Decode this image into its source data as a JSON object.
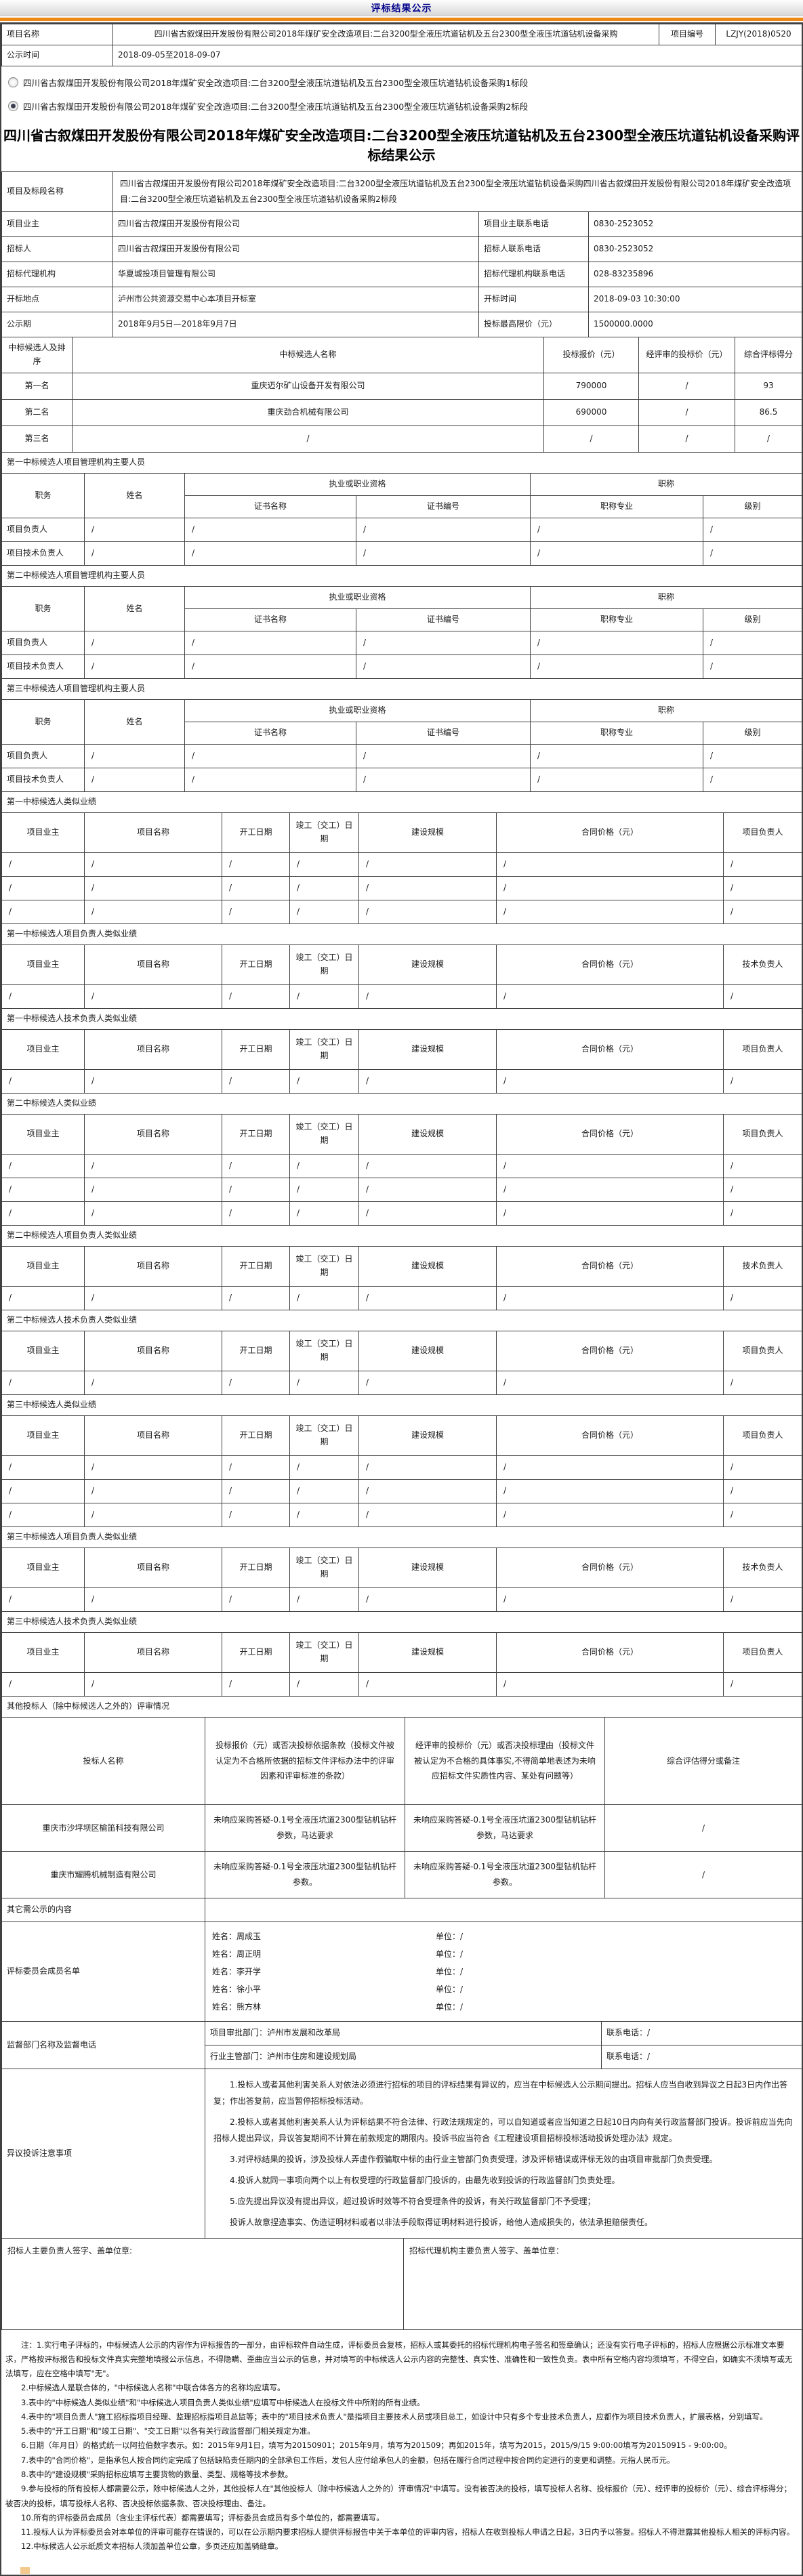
{
  "page_title": "评标结果公示",
  "top_table": {
    "project_name_label": "项目名称",
    "project_name": "四川省古叙煤田开发股份有限公司2018年煤矿安全改造项目:二台3200型全液压坑道钻机及五台2300型全液压坑道钻机设备采购",
    "project_no_label": "项目编号",
    "project_no": "LZJY(2018)0520",
    "publicity_label": "公示时间",
    "publicity_value": "2018-09-05至2018-09-07"
  },
  "lot_options": [
    {
      "label": "四川省古叙煤田开发股份有限公司2018年煤矿安全改造项目:二台3200型全液压坑道钻机及五台2300型全液压坑道钻机设备采购1标段",
      "selected": false
    },
    {
      "label": "四川省古叙煤田开发股份有限公司2018年煤矿安全改造项目:二台3200型全液压坑道钻机及五台2300型全液压坑道钻机设备采购2标段",
      "selected": true
    }
  ],
  "result_title": "四川省古叙煤田开发股份有限公司2018年煤矿安全改造项目:二台3200型全液压坑道钻机及五台2300型全液压坑道钻机设备采购评标结果公示",
  "project_info": {
    "lot_label": "项目及标段名称",
    "lot_value": "四川省古叙煤田开发股份有限公司2018年煤矿安全改造项目:二台3200型全液压坑道钻机及五台2300型全液压坑道钻机设备采购四川省古叙煤田开发股份有限公司2018年煤矿安全改造项目:二台3200型全液压坑道钻机及五台2300型全液压坑道钻机设备采购2标段",
    "rows4": [
      {
        "l1": "项目业主",
        "v1": "四川省古叙煤田开发股份有限公司",
        "l2": "项目业主联系电话",
        "v2": "0830-2523052"
      },
      {
        "l1": "招标人",
        "v1": "四川省古叙煤田开发股份有限公司",
        "l2": "招标人联系电话",
        "v2": "0830-2523052"
      },
      {
        "l1": "招标代理机构",
        "v1": "华夏城投项目管理有限公司",
        "l2": "招标代理机构联系电话",
        "v2": "028-83235896"
      },
      {
        "l1": "开标地点",
        "v1": "泸州市公共资源交易中心本项目开标室",
        "l2": "开标时间",
        "v2": "2018-09-03 10:30:00"
      },
      {
        "l1": "公示期",
        "v1": "2018年9月5日—2018年9月7日",
        "l2": "投标最高限价（元）",
        "v2": "1500000.0000"
      }
    ]
  },
  "ranking": {
    "headers": [
      "中标候选人及排序",
      "中标候选人名称",
      "投标报价（元）",
      "经评审的投标价（元）",
      "综合评标得分"
    ],
    "rows": [
      {
        "rank": "第一名",
        "name": "重庆迈尔矿山设备开发有限公司",
        "price": "790000",
        "reviewed": "/",
        "score": "93"
      },
      {
        "rank": "第二名",
        "name": "重庆劲合机械有限公司",
        "price": "690000",
        "reviewed": "/",
        "score": "86.5"
      },
      {
        "rank": "第三名",
        "name": "/",
        "price": "/",
        "reviewed": "/",
        "score": "/"
      }
    ]
  },
  "personnel_headers": {
    "col_role": "职务",
    "col_name": "姓名",
    "group_qual": "执业或职业资格",
    "group_title": "职称",
    "col_cert_name": "证书名称",
    "col_cert_no": "证书编号",
    "col_title_major": "职称专业",
    "col_level": "级别"
  },
  "personnel_sections": [
    {
      "title": "第一中标候选人项目管理机构主要人员",
      "rows": [
        {
          "role": "项目负责人",
          "cells": [
            "/",
            "/",
            "/",
            "/",
            "/"
          ]
        },
        {
          "role": "项目技术负责人",
          "cells": [
            "/",
            "/",
            "/",
            "/",
            "/"
          ]
        }
      ]
    },
    {
      "title": "第二中标候选人项目管理机构主要人员",
      "rows": [
        {
          "role": "项目负责人",
          "cells": [
            "/",
            "/",
            "/",
            "/",
            "/"
          ]
        },
        {
          "role": "项目技术负责人",
          "cells": [
            "/",
            "/",
            "/",
            "/",
            "/"
          ]
        }
      ]
    },
    {
      "title": "第三中标候选人项目管理机构主要人员",
      "rows": [
        {
          "role": "项目负责人",
          "cells": [
            "/",
            "/",
            "/",
            "/",
            "/"
          ]
        },
        {
          "role": "项目技术负责人",
          "cells": [
            "/",
            "/",
            "/",
            "/",
            "/"
          ]
        }
      ]
    }
  ],
  "performance_headers": [
    "项目业主",
    "项目名称",
    "开工日期",
    "竣工（交工）日期",
    "建设规模",
    "合同价格（元）"
  ],
  "performance_sections": [
    {
      "title": "第一中标候选人类似业绩",
      "last_col": "项目负责人",
      "rows": [
        [
          "/",
          "/",
          "/",
          "/",
          "/",
          "/",
          "/"
        ],
        [
          "/",
          "/",
          "/",
          "/",
          "/",
          "/",
          "/"
        ],
        [
          "/",
          "/",
          "/",
          "/",
          "/",
          "/",
          "/"
        ]
      ]
    },
    {
      "title": "第一中标候选人项目负责人类似业绩",
      "last_col": "技术负责人",
      "rows": [
        [
          "/",
          "/",
          "/",
          "/",
          "/",
          "/",
          "/"
        ]
      ]
    },
    {
      "title": "第一中标候选人技术负责人类似业绩",
      "last_col": "项目负责人",
      "rows": [
        [
          "/",
          "/",
          "/",
          "/",
          "/",
          "/",
          "/"
        ]
      ]
    },
    {
      "title": "第二中标候选人类似业绩",
      "last_col": "项目负责人",
      "rows": [
        [
          "/",
          "/",
          "/",
          "/",
          "/",
          "/",
          "/"
        ],
        [
          "/",
          "/",
          "/",
          "/",
          "/",
          "/",
          "/"
        ],
        [
          "/",
          "/",
          "/",
          "/",
          "/",
          "/",
          "/"
        ]
      ]
    },
    {
      "title": "第二中标候选人项目负责人类似业绩",
      "last_col": "技术负责人",
      "rows": [
        [
          "/",
          "/",
          "/",
          "/",
          "/",
          "/",
          "/"
        ]
      ]
    },
    {
      "title": "第二中标候选人技术负责人类似业绩",
      "last_col": "项目负责人",
      "rows": [
        [
          "/",
          "/",
          "/",
          "/",
          "/",
          "/",
          "/"
        ]
      ]
    },
    {
      "title": "第三中标候选人类似业绩",
      "last_col": "项目负责人",
      "rows": [
        [
          "/",
          "/",
          "/",
          "/",
          "/",
          "/",
          "/"
        ],
        [
          "/",
          "/",
          "/",
          "/",
          "/",
          "/",
          "/"
        ],
        [
          "/",
          "/",
          "/",
          "/",
          "/",
          "/",
          "/"
        ]
      ]
    },
    {
      "title": "第三中标候选人项目负责人类似业绩",
      "last_col": "技术负责人",
      "rows": [
        [
          "/",
          "/",
          "/",
          "/",
          "/",
          "/",
          "/"
        ]
      ]
    },
    {
      "title": "第三中标候选人技术负责人类似业绩",
      "last_col": "项目负责人",
      "rows": [
        [
          "/",
          "/",
          "/",
          "/",
          "/",
          "/",
          "/"
        ]
      ]
    }
  ],
  "other_bidders": {
    "section_title": "其他投标人（除中标候选人之外的）评审情况",
    "headers": [
      "投标人名称",
      "投标报价（元）或否决投标依据条款（投标文件被认定为不合格所依据的招标文件评标办法中的评审因素和评审标准的条款）",
      "经评审的投标价（元）或否决投标理由（投标文件被认定为不合格的具体事实,不得简单地表述为未响应招标文件实质性内容、某处有问题等）",
      "综合评估得分或备注"
    ],
    "rows": [
      {
        "name": "重庆市沙坪坝区榆笛科技有限公司",
        "clause": "未响应采购答疑-0.1号全液压坑道2300型钻机钻杆参数，马达要求",
        "reason": "未响应采购答疑-0.1号全液压坑道2300型钻机钻杆参数，马达要求",
        "score": "/"
      },
      {
        "name": "重庆市耀腾机械制造有限公司",
        "clause": "未响应采购答疑-0.1号全液压坑道2300型钻机钻杆参数。",
        "reason": "未响应采购答疑-0.1号全液压坑道2300型钻机钻杆参数。",
        "score": "/"
      }
    ]
  },
  "other_content_label": "其它需公示的内容",
  "committee": {
    "label": "评标委员会成员名单",
    "name_prefix": "姓名：",
    "unit_prefix": "单位：",
    "members": [
      {
        "name": "周成玉",
        "unit": "/"
      },
      {
        "name": "周正明",
        "unit": "/"
      },
      {
        "name": "李开学",
        "unit": "/"
      },
      {
        "name": "徐小平",
        "unit": "/"
      },
      {
        "name": "熊方林",
        "unit": "/"
      }
    ]
  },
  "supervision": {
    "label": "监督部门名称及监督电话",
    "rows": [
      {
        "dept": "项目审批部门：泸州市发展和改革局",
        "tel": "联系电话：/"
      },
      {
        "dept": "行业主管部门：泸州市住房和建设规划局",
        "tel": "联系电话：/"
      }
    ]
  },
  "objection": {
    "label": "异议投诉注意事项",
    "paragraphs": [
      "1.投标人或者其他利害关系人对依法必须进行招标的项目的评标结果有异议的，应当在中标候选人公示期间提出。招标人应当自收到异议之日起3日内作出答复；作出答复前，应当暂停招标投标活动。",
      "2.投标人或者其他利害关系人认为评标结果不符合法律、行政法规规定的，可以自知道或者应当知道之日起10日内向有关行政监督部门投诉。投诉前应当先向招标人提出异议，异议答复期间不计算在前款规定的期限内。投诉书应当符合《工程建设项目招标投标活动投诉处理办法》规定。",
      "3.对评标结果的投诉，涉及投标人弄虚作假骗取中标的由行业主管部门负责受理，涉及评标错误或评标无效的由项目审批部门负责受理。",
      "4.投诉人就同一事项向两个以上有权受理的行政监督部门投诉的，由最先收到投诉的行政监督部门负责处理。",
      "5.应先提出异议没有提出异议，超过投诉时效等不符合受理条件的投诉，有关行政监督部门不予受理；",
      "投诉人故意捏造事实、伪造证明材料或者以非法手段取得证明材料进行投诉，给他人造成损失的，依法承担赔偿责任。"
    ]
  },
  "signature": {
    "bidder_label": "招标人主要负责人签字、盖单位章:",
    "agency_label": "招标代理机构主要负责人签字、盖单位章："
  },
  "notes": [
    "注：1.实行电子评标的，中标候选人公示的内容作为评标报告的一部分，由评标软件自动生成，评标委员会复核，招标人或其委托的招标代理机构电子签名和签章确认；还没有实行电子评标的，招标人应根据公示标准文本要求，严格按评标报告和投标文件真实完整地填报公示信息，不得隐瞒、歪曲应当公示的信息，并对填写的中标候选人公示内容的完整性、真实性、准确性和一致性负责。表中所有空格内容均须填写，不得空白，如确实不须填写或无法填写，应在空格中填写\"无\"。",
    "2.中标候选人是联合体的，\"中标候选人名称\"中联合体各方的名称均应填写。",
    "3.表中的\"中标候选人类似业绩\"和\"中标候选人项目负责人类似业绩\"应填写中标候选人在投标文件中所附的所有业绩。",
    "4.表中的\"项目负责人\"施工招标指项目经理、监理招标指项目总监等；表中的\"项目技术负责人\"是指项目主要技术人员或项目总工，如设计中只有多个专业技术负责人，应都作为项目技术负责人，扩展表格，分别填写。",
    "5.表中的\"开工日期\"和\"竣工日期\"、\"交工日期\"以各有关行政监督部门相关规定为准。",
    "6.日期（年月日）的格式统一以阿拉伯数字表示。如：2015年9月1日，填写为20150901；2015年9月，填写为201509；再如2015年，填写为2015，2015/9/15 9:00:00填写为20150915 - 9:00:00。",
    "7.表中的\"合同价格\"，是指承包人按合同约定完成了包括缺陷责任期内的全部承包工作后，发包人应付给承包人的金额，包括在履行合同过程中按合同约定进行的变更和调整。元指人民币元。",
    "8.表中的\"建设规模\"采购招标应填写主要货物的数量、类型、规格等技术参数。",
    "9.参与投标的所有投标人都需要公示，除中标候选人之外，其他投标人在\"其他投标人（除中标候选人之外的）评审情况\"中填写。没有被否决的投标，填写投标人名称、投标报价（元）、经评审的投标价（元）、综合评标得分；被否决的投标，填写投标人名称、否决投标依据条款、否决投标理由、备注。",
    "10.所有的评标委员会成员（含业主评标代表）都需要填写；评标委员会成员有多个单位的，都需要填写。",
    "11.投标人认为评标委员会对本单位的评审可能存在错误的，可以在公示期内要求招标人提供评标报告中关于本单位的评审内容，招标人在收到投标人申请之日起，3日内予以答复。招标人不得泄露其他投标人相关的评标内容。",
    "12.中标候选人公示纸质文本招标人须加盖单位公章，多页还应加盖骑缝章。"
  ]
}
